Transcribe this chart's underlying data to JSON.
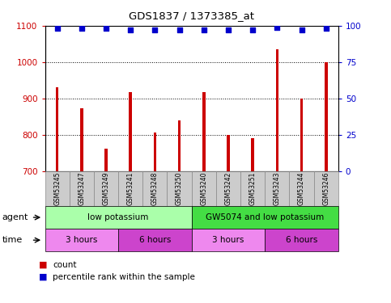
{
  "title": "GDS1837 / 1373385_at",
  "samples": [
    "GSM53245",
    "GSM53247",
    "GSM53249",
    "GSM53241",
    "GSM53248",
    "GSM53250",
    "GSM53240",
    "GSM53242",
    "GSM53251",
    "GSM53243",
    "GSM53244",
    "GSM53246"
  ],
  "counts": [
    930,
    872,
    762,
    918,
    806,
    840,
    918,
    800,
    790,
    1035,
    900,
    1000
  ],
  "percentiles": [
    98,
    98,
    98,
    97,
    97,
    97,
    97,
    97,
    97,
    99,
    97,
    98
  ],
  "ylim_left": [
    700,
    1100
  ],
  "ylim_right": [
    0,
    100
  ],
  "yticks_left": [
    700,
    800,
    900,
    1000,
    1100
  ],
  "yticks_right": [
    0,
    25,
    50,
    75,
    100
  ],
  "bar_color": "#cc0000",
  "dot_color": "#0000cc",
  "agent_groups": [
    {
      "label": "low potassium",
      "start": 0,
      "end": 6,
      "color": "#aaffaa"
    },
    {
      "label": "GW5074 and low potassium",
      "start": 6,
      "end": 12,
      "color": "#44dd44"
    }
  ],
  "time_groups": [
    {
      "label": "3 hours",
      "start": 0,
      "end": 3,
      "color": "#ee88ee"
    },
    {
      "label": "6 hours",
      "start": 3,
      "end": 6,
      "color": "#cc44cc"
    },
    {
      "label": "3 hours",
      "start": 6,
      "end": 9,
      "color": "#ee88ee"
    },
    {
      "label": "6 hours",
      "start": 9,
      "end": 12,
      "color": "#cc44cc"
    }
  ],
  "bar_width": 0.12,
  "tick_bg_color": "#cccccc",
  "tick_border_color": "#888888"
}
